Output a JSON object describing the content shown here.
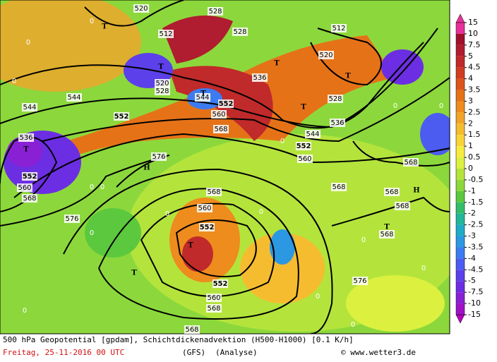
{
  "map": {
    "labels": [
      "520",
      "528",
      "512",
      "528",
      "512",
      "520",
      "520",
      "528",
      "536",
      "544",
      "552",
      "544",
      "552",
      "560",
      "568",
      "544",
      "536",
      "552",
      "560",
      "568",
      "576",
      "576",
      "568",
      "560",
      "552",
      "552",
      "560",
      "568",
      "568",
      "576",
      "528",
      "536",
      "544",
      "552",
      "560",
      "568",
      "568",
      "568",
      "568",
      "568",
      "T",
      "T",
      "T",
      "T",
      "T",
      "T",
      "T",
      "T",
      "T",
      "T",
      "H",
      "H",
      "0",
      "0",
      "0",
      "0",
      "0",
      "0",
      "0",
      "0",
      "0",
      "0",
      "0",
      "0",
      "0",
      "0",
      "0",
      "0"
    ]
  },
  "legend": {
    "levels": [
      15,
      10,
      7.5,
      5,
      4.5,
      4,
      3.5,
      3,
      2.5,
      2,
      1.5,
      1,
      0.5,
      0,
      -0.5,
      -1,
      -1.5,
      -2,
      -2.5,
      -3,
      -3.5,
      -4,
      -4.5,
      -5,
      -7.5,
      -10,
      -15
    ],
    "colors": [
      "#e8309a",
      "#a0102a",
      "#b01c30",
      "#c02a2a",
      "#d03c22",
      "#dc561c",
      "#e67218",
      "#ee8c1e",
      "#f2a42a",
      "#f6bc30",
      "#f8d438",
      "#f6ec40",
      "#dcf040",
      "#b4e43c",
      "#8cd83c",
      "#5cc83e",
      "#34be6a",
      "#22b69a",
      "#20acc6",
      "#2c98e2",
      "#3c7cf0",
      "#4c5cf0",
      "#5c40ea",
      "#6c2ee2",
      "#8a20d4",
      "#a012c6",
      "#b800c0"
    ]
  },
  "footer": {
    "line1": "500 hPa Geopotential [gpdam], Schichtdickenadvektion (H500-H1000) [0.1 K/h]",
    "date": "Freitag, 25-11-2016  00 UTC",
    "model": "(GFS)",
    "run": "(Analyse)",
    "credit": "© www.wetter3.de"
  }
}
